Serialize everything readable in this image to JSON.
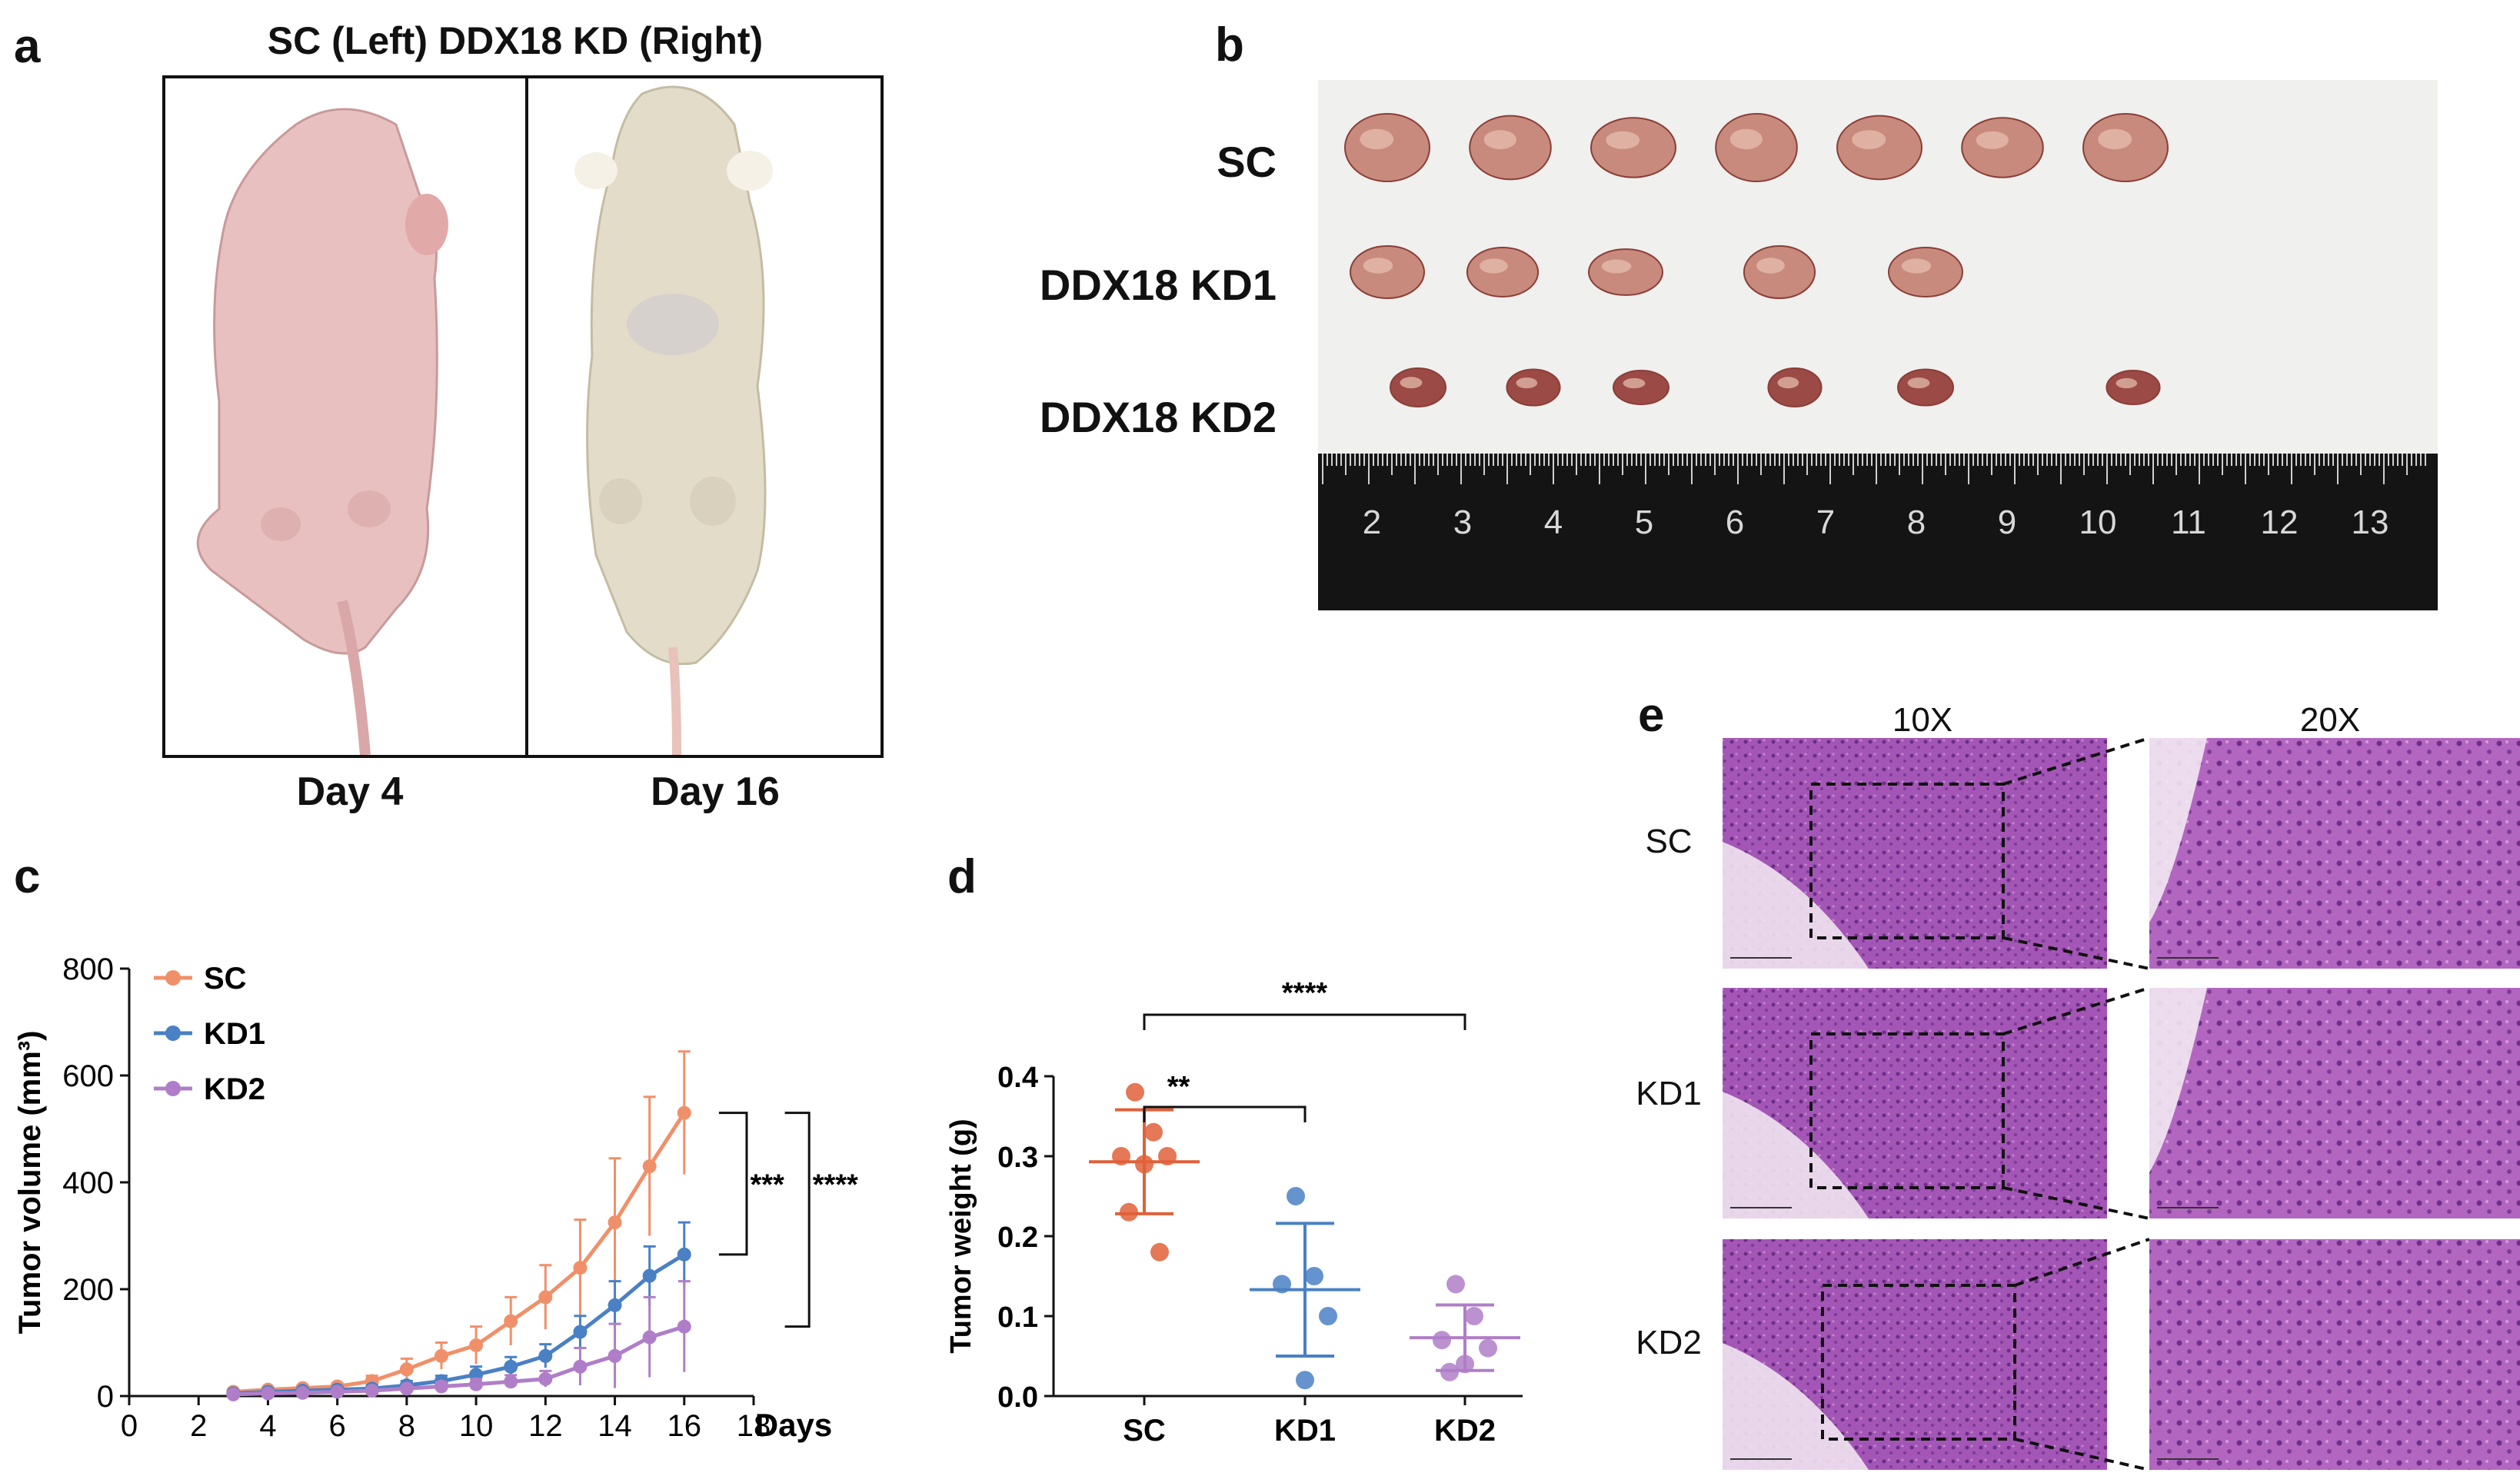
{
  "panel_a": {
    "letter": "a",
    "title": "SC (Left) DDX18 KD (Right)",
    "labels": [
      "Day 4",
      "Day 16"
    ]
  },
  "panel_b": {
    "letter": "b",
    "rows": [
      {
        "label": "SC",
        "count": 7
      },
      {
        "label": "DDX18 KD1",
        "count": 5
      },
      {
        "label": "DDX18 KD2",
        "count": 6
      }
    ],
    "ruler_numbers": [
      "2",
      "3",
      "4",
      "5",
      "6",
      "7",
      "8",
      "9",
      "10",
      "11",
      "12",
      "13"
    ]
  },
  "panel_c": {
    "letter": "c"
  },
  "panel_d": {
    "letter": "d"
  },
  "panel_e": {
    "letter": "e",
    "col_headers": [
      "10X",
      "20X"
    ],
    "row_labels": [
      "SC",
      "KD1",
      "KD2"
    ]
  },
  "chart_data": [
    {
      "id": "c",
      "type": "line",
      "xlabel": "Days",
      "ylabel": "Tumor volume (mm³)",
      "xlim": [
        0,
        18
      ],
      "ylim": [
        0,
        800
      ],
      "xticks": [
        "0",
        "2",
        "4",
        "6",
        "8",
        "10",
        "12",
        "14",
        "16",
        "18"
      ],
      "yticks": [
        "0",
        "200",
        "400",
        "600",
        "800"
      ],
      "x": [
        3,
        4,
        5,
        6,
        7,
        8,
        9,
        10,
        11,
        12,
        13,
        14,
        15,
        16
      ],
      "series": [
        {
          "name": "SC",
          "color": "#f0906a",
          "values": [
            8,
            12,
            15,
            18,
            28,
            50,
            75,
            95,
            140,
            185,
            240,
            325,
            430,
            530
          ],
          "err": [
            3,
            4,
            5,
            6,
            10,
            20,
            25,
            35,
            45,
            60,
            90,
            120,
            130,
            115
          ]
        },
        {
          "name": "KD1",
          "color": "#4a80c4",
          "values": [
            5,
            8,
            10,
            12,
            14,
            20,
            28,
            40,
            55,
            75,
            120,
            170,
            225,
            265
          ],
          "err": [
            3,
            3,
            4,
            5,
            6,
            8,
            10,
            15,
            18,
            22,
            30,
            45,
            55,
            60
          ]
        },
        {
          "name": "KD2",
          "color": "#b07ec8",
          "values": [
            3,
            5,
            6,
            8,
            10,
            14,
            18,
            22,
            27,
            32,
            55,
            75,
            110,
            130
          ],
          "err": [
            2,
            2,
            3,
            3,
            4,
            5,
            8,
            10,
            12,
            15,
            35,
            60,
            75,
            85
          ]
        }
      ],
      "annotations": [
        "***",
        "****"
      ]
    },
    {
      "id": "d",
      "type": "scatter",
      "ylabel": "Tumor weight (g)",
      "ylim": [
        0,
        0.4
      ],
      "yticks": [
        "0.0",
        "0.1",
        "0.2",
        "0.3",
        "0.4"
      ],
      "categories": [
        "SC",
        "KD1",
        "KD2"
      ],
      "series": [
        {
          "name": "SC",
          "color": "#e0603a",
          "points": [
            0.38,
            0.33,
            0.3,
            0.3,
            0.29,
            0.23,
            0.18
          ],
          "mean": 0.293,
          "sd": 0.065
        },
        {
          "name": "KD1",
          "color": "#4a80c4",
          "points": [
            0.25,
            0.15,
            0.14,
            0.1,
            0.02
          ],
          "mean": 0.133,
          "sd": 0.083
        },
        {
          "name": "KD2",
          "color": "#b07ec8",
          "points": [
            0.14,
            0.1,
            0.07,
            0.06,
            0.04,
            0.03
          ],
          "mean": 0.073,
          "sd": 0.041
        }
      ],
      "annotations": [
        "**",
        "****"
      ]
    }
  ]
}
